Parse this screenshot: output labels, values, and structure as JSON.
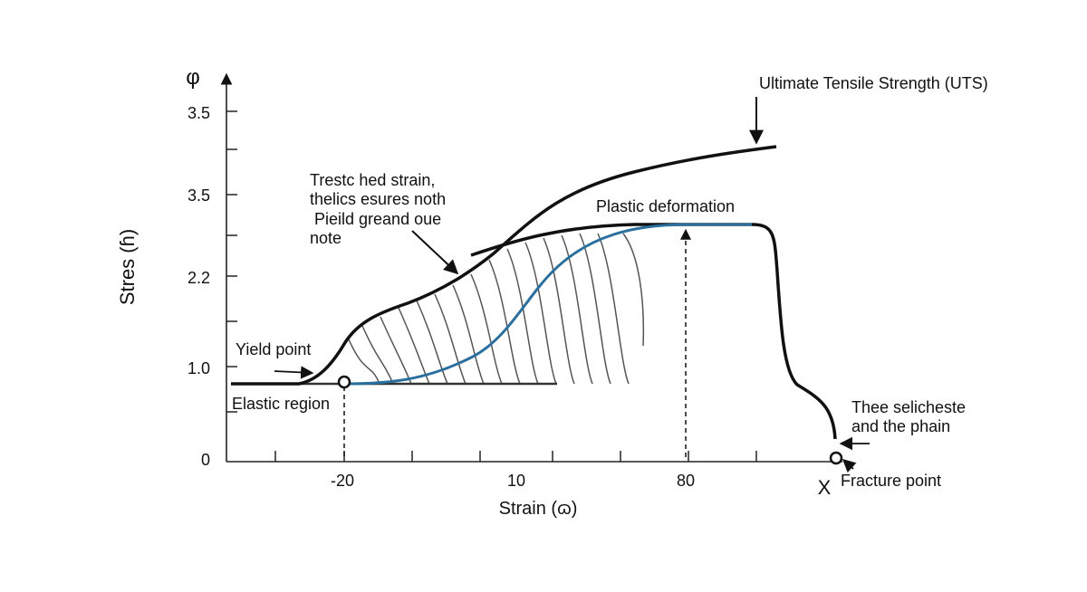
{
  "axes": {
    "y_symbol": "φ",
    "y_label": "Stres (ɦ)",
    "x_label": "Strain (ɷ)",
    "y_ticks": [
      "3.5",
      "3.5",
      "2.2",
      "1.0",
      "0"
    ],
    "x_ticks": [
      "-20",
      "10",
      "80"
    ],
    "x_end": "X"
  },
  "annotations": {
    "uts": "Ultimate Tensile Strength (UTS)",
    "note": [
      "Trestc hed strain,",
      "thelics esures noth",
      " Pieild greand oue",
      "note"
    ],
    "plastic": "Plastic deformation",
    "yield": "Yield point",
    "elastic": "Elastic region",
    "neck": [
      "Thee selicheste",
      "and the phain"
    ],
    "fracture": "Fracture point"
  }
}
